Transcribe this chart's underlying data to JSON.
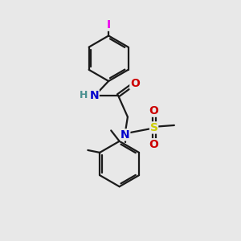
{
  "background_color": "#e8e8e8",
  "bond_color": "#1a1a1a",
  "atom_colors": {
    "I": "#ee00ee",
    "N": "#0000cc",
    "O": "#cc0000",
    "S": "#cccc00",
    "H": "#4a9090",
    "C": "#1a1a1a"
  },
  "figsize": [
    3.0,
    3.0
  ],
  "dpi": 100
}
